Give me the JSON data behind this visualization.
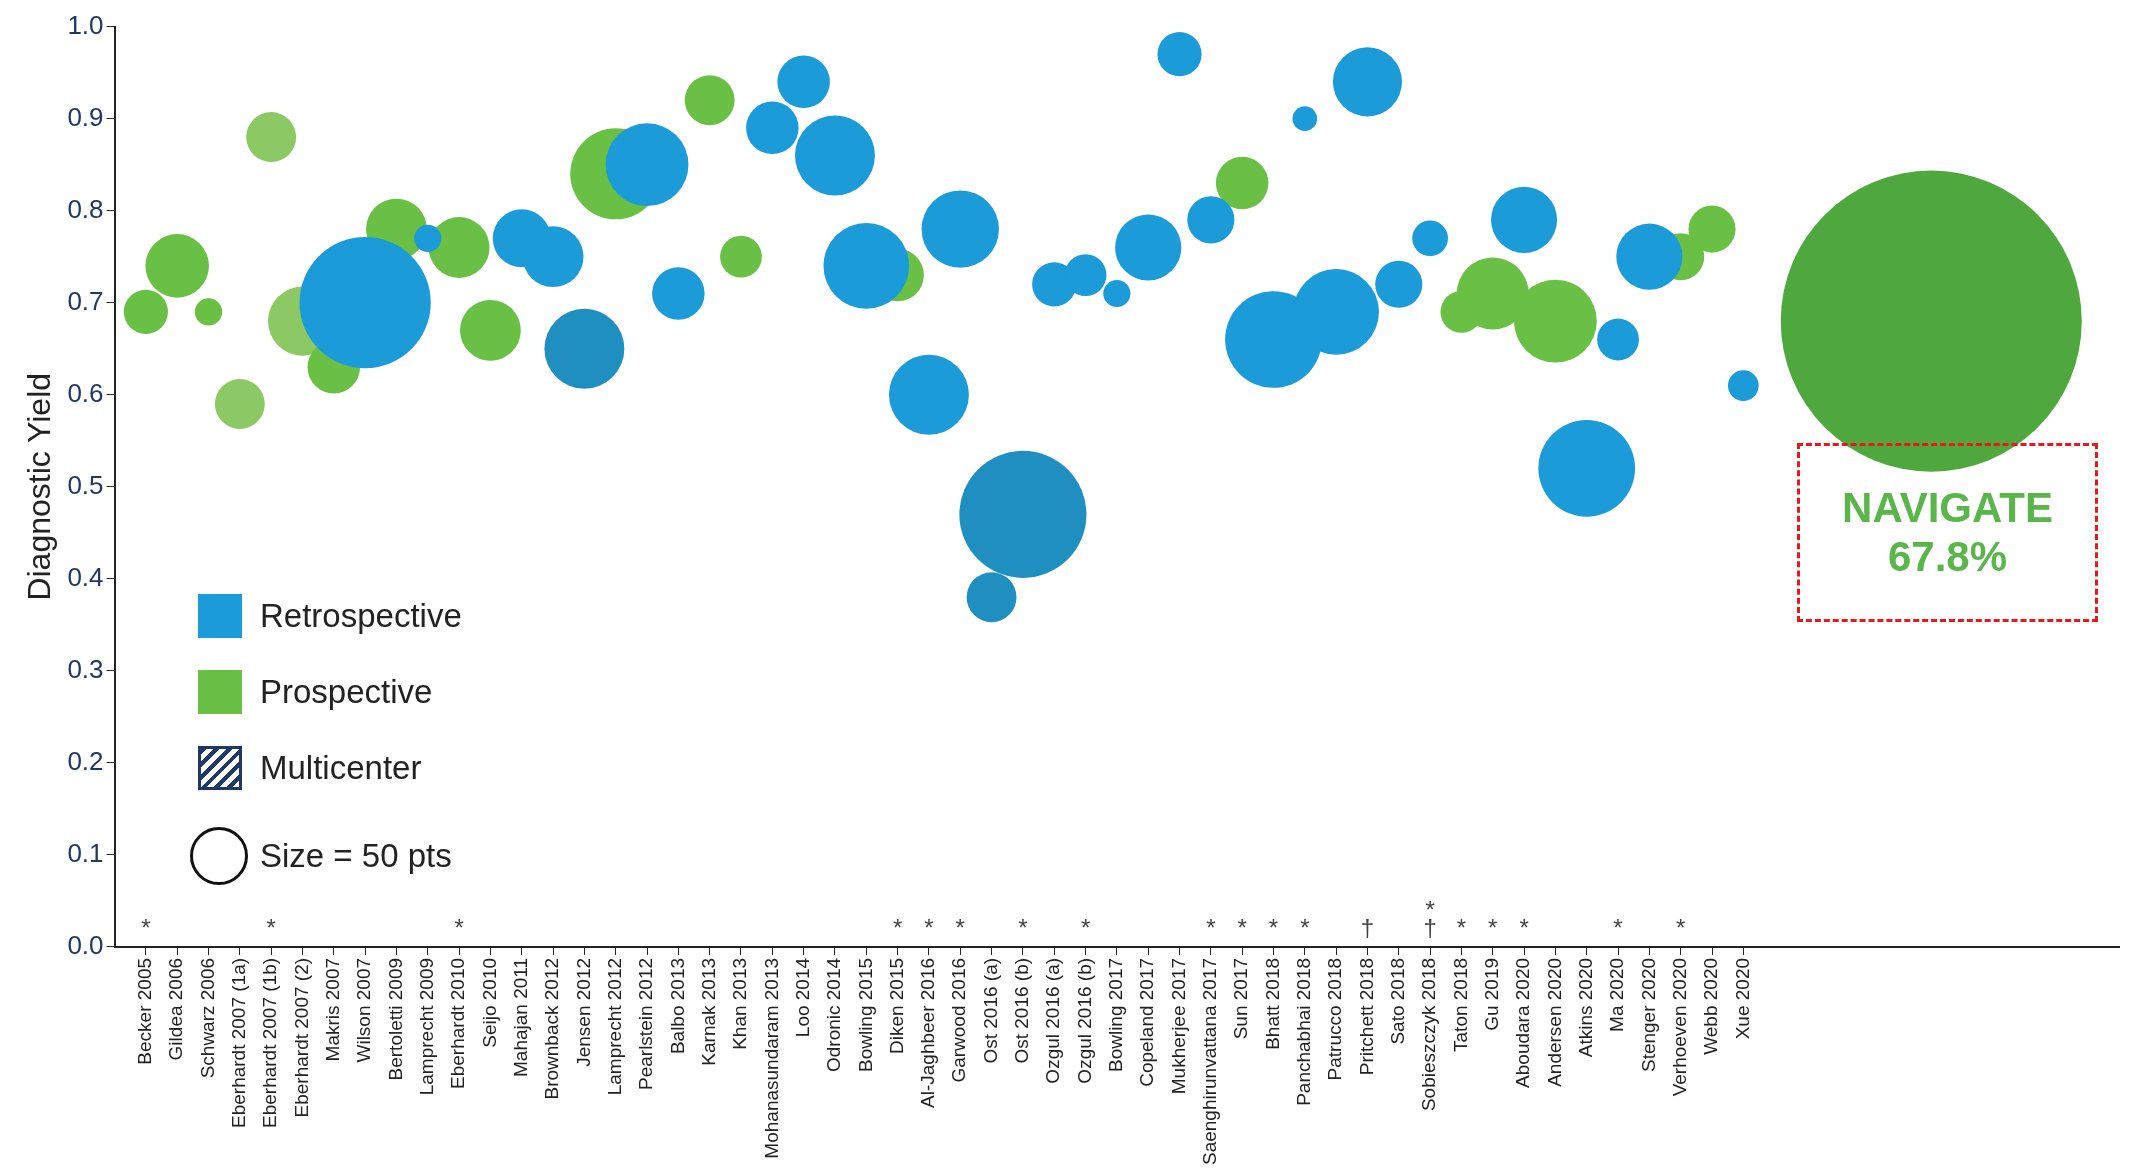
{
  "chart_data": {
    "type": "bubble",
    "ylabel": "Diagnostic Yield",
    "categories": [
      "Becker 2005",
      "Gildea 2006",
      "Schwarz 2006",
      "Eberhardt 2007 (1a)",
      "Eberhardt 2007 (1b)",
      "Eberhardt 2007 (2)",
      "Makris 2007",
      "Wilson 2007",
      "Bertoletti 2009",
      "Lamprecht 2009",
      "Eberhardt 2010",
      "Seijo 2010",
      "Mahajan 2011",
      "Brownback 2012",
      "Jensen 2012",
      "Lamprecht 2012",
      "Pearlstein 2012",
      "Balbo 2013",
      "Karnak 2013",
      "Khan 2013",
      "Mohanasundaram 2013",
      "Loo 2014",
      "Odronic 2014",
      "Bowling 2015",
      "Diken 2015",
      "Al-Jaghbeer 2016",
      "Garwood 2016",
      "Ost 2016 (a)",
      "Ost 2016 (b)",
      "Ozgul 2016 (a)",
      "Ozgul 2016 (b)",
      "Bowling 2017",
      "Copeland 2017",
      "Mukherjee 2017",
      "Saenghirunvattana 2017",
      "Sun 2017",
      "Bhatt 2018",
      "Panchabhai 2018",
      "Patrucco 2018",
      "Pritchett 2018",
      "Sato 2018",
      "Sobieszczyk 2018",
      "Taton 2018",
      "Gu 2019",
      "Aboudara 2020",
      "Andersen 2020",
      "Atkins 2020",
      "Ma 2020",
      "Stenger 2020",
      "Verhoeven 2020",
      "Webb 2020",
      "Xue 2020",
      null,
      null,
      null,
      null,
      null,
      null,
      null,
      null,
      null,
      null,
      null,
      null
    ],
    "series": [
      {
        "name": "Retrospective",
        "color": "#1b9bd7",
        "values": [
          null,
          null,
          null,
          null,
          null,
          null,
          null,
          0.7,
          null,
          0.77,
          null,
          null,
          0.77,
          0.75,
          null,
          null,
          0.85,
          0.71,
          null,
          null,
          0.89,
          0.94,
          0.86,
          0.74,
          null,
          0.6,
          0.78,
          null,
          null,
          0.72,
          0.73,
          0.71,
          0.76,
          0.97,
          0.79,
          null,
          0.66,
          0.9,
          0.69,
          0.94,
          0.72,
          0.77,
          null,
          null,
          0.79,
          null,
          0.52,
          0.66,
          0.75,
          null,
          null,
          0.61,
          null,
          null,
          null,
          null,
          null,
          null,
          null,
          null,
          null,
          null,
          null,
          null
        ],
        "sizes": [
          null,
          null,
          null,
          null,
          null,
          null,
          null,
          256,
          null,
          11,
          null,
          null,
          50,
          55,
          null,
          null,
          102,
          41,
          null,
          null,
          41,
          41,
          95,
          109,
          null,
          95,
          89,
          null,
          null,
          29,
          26,
          11,
          65,
          29,
          33,
          null,
          139,
          9,
          109,
          71,
          33,
          19,
          null,
          null,
          65,
          null,
          139,
          26,
          65,
          null,
          null,
          14,
          null,
          null,
          null,
          null,
          null,
          null,
          null,
          null,
          null,
          null,
          null,
          null
        ]
      },
      {
        "name": "Prospective",
        "color": "#6abf45",
        "values": [
          0.69,
          0.74,
          0.69,
          null,
          null,
          null,
          0.63,
          null,
          0.78,
          null,
          0.76,
          0.67,
          null,
          null,
          null,
          0.84,
          null,
          null,
          0.92,
          0.75,
          null,
          null,
          null,
          null,
          0.73,
          null,
          null,
          null,
          null,
          null,
          null,
          null,
          null,
          null,
          null,
          0.83,
          null,
          null,
          null,
          null,
          null,
          null,
          0.69,
          0.71,
          null,
          0.68,
          null,
          null,
          null,
          0.75,
          0.78,
          null,
          null,
          null,
          null,
          null,
          null,
          null,
          null,
          null,
          null,
          null,
          null,
          null
        ],
        "sizes": [
          29,
          60,
          11,
          null,
          null,
          null,
          41,
          null,
          55,
          null,
          55,
          55,
          null,
          null,
          null,
          123,
          null,
          null,
          37,
          26,
          null,
          null,
          null,
          null,
          41,
          null,
          null,
          null,
          null,
          null,
          null,
          null,
          null,
          null,
          null,
          41,
          null,
          null,
          null,
          null,
          null,
          null,
          26,
          77,
          null,
          102,
          null,
          null,
          null,
          33,
          33,
          null,
          null,
          null,
          null,
          null,
          null,
          null,
          null,
          null,
          null,
          null,
          null,
          null
        ]
      },
      {
        "name": "Multicenter",
        "color": "#1f3864",
        "values": [
          null,
          null,
          null,
          0.59,
          0.88,
          0.68,
          null,
          null,
          null,
          null,
          null,
          null,
          null,
          null,
          0.65,
          null,
          null,
          null,
          null,
          null,
          null,
          null,
          null,
          null,
          null,
          null,
          null,
          0.38,
          0.47,
          null,
          null,
          null,
          null,
          null,
          null,
          null,
          null,
          null,
          null,
          null,
          null,
          null,
          null,
          null,
          null,
          null,
          null,
          null,
          null,
          null,
          null,
          null,
          null,
          null,
          null,
          null,
          null,
          0.68,
          null,
          null,
          null,
          null,
          null,
          null
        ],
        "sizes": [
          null,
          null,
          null,
          37,
          37,
          71,
          null,
          null,
          null,
          null,
          null,
          null,
          null,
          null,
          95,
          null,
          null,
          null,
          null,
          null,
          null,
          null,
          null,
          null,
          null,
          null,
          null,
          37,
          240,
          null,
          null,
          null,
          null,
          null,
          null,
          null,
          null,
          null,
          null,
          null,
          null,
          null,
          null,
          null,
          null,
          null,
          null,
          null,
          null,
          null,
          null,
          null,
          null,
          null,
          null,
          null,
          null,
          1347,
          null,
          null,
          null,
          null,
          null,
          null
        ],
        "colors": [
          null,
          null,
          null,
          "#8cc864",
          "#8cc864",
          "#8cc864",
          null,
          null,
          null,
          null,
          null,
          null,
          null,
          null,
          "#1f8fc0",
          null,
          null,
          null,
          null,
          null,
          null,
          null,
          null,
          null,
          null,
          null,
          null,
          "#1f8fc0",
          "#1f8fc0",
          null,
          null,
          null,
          null,
          null,
          null,
          null,
          null,
          null,
          null,
          null,
          null,
          null,
          null,
          null,
          null,
          null,
          null,
          null,
          null,
          null,
          null,
          null,
          null,
          null,
          null,
          null,
          null,
          "#4fa83d",
          null,
          null,
          null,
          null,
          null,
          null
        ]
      }
    ],
    "ylim": [
      0,
      1
    ],
    "yticks": [
      {
        "value": 0,
        "label": "0.0"
      },
      {
        "value": 0.1,
        "label": "0.1"
      },
      {
        "value": 0.2,
        "label": "0.2"
      },
      {
        "value": 0.3,
        "label": "0.3"
      },
      {
        "value": 0.4,
        "label": "0.4"
      },
      {
        "value": 0.5,
        "label": "0.5"
      },
      {
        "value": 0.6,
        "label": "0.6"
      },
      {
        "value": 0.7,
        "label": "0.7"
      },
      {
        "value": 0.8,
        "label": "0.8"
      },
      {
        "value": 0.9,
        "label": "0.9"
      },
      {
        "value": 1,
        "label": "1.0"
      }
    ],
    "size_legend": [
      {
        "value": 50,
        "label": "Size = 50 pts"
      }
    ],
    "legend": "bottom left",
    "annotations": [
      "NAVIGATE",
      "67.8%",
      "*",
      "*",
      "*",
      "*",
      "*",
      "*",
      "*",
      "*",
      "*",
      "*",
      "*",
      "*",
      "†",
      "†",
      "*",
      "*",
      "*",
      "*",
      "*",
      "*"
    ]
  }
}
